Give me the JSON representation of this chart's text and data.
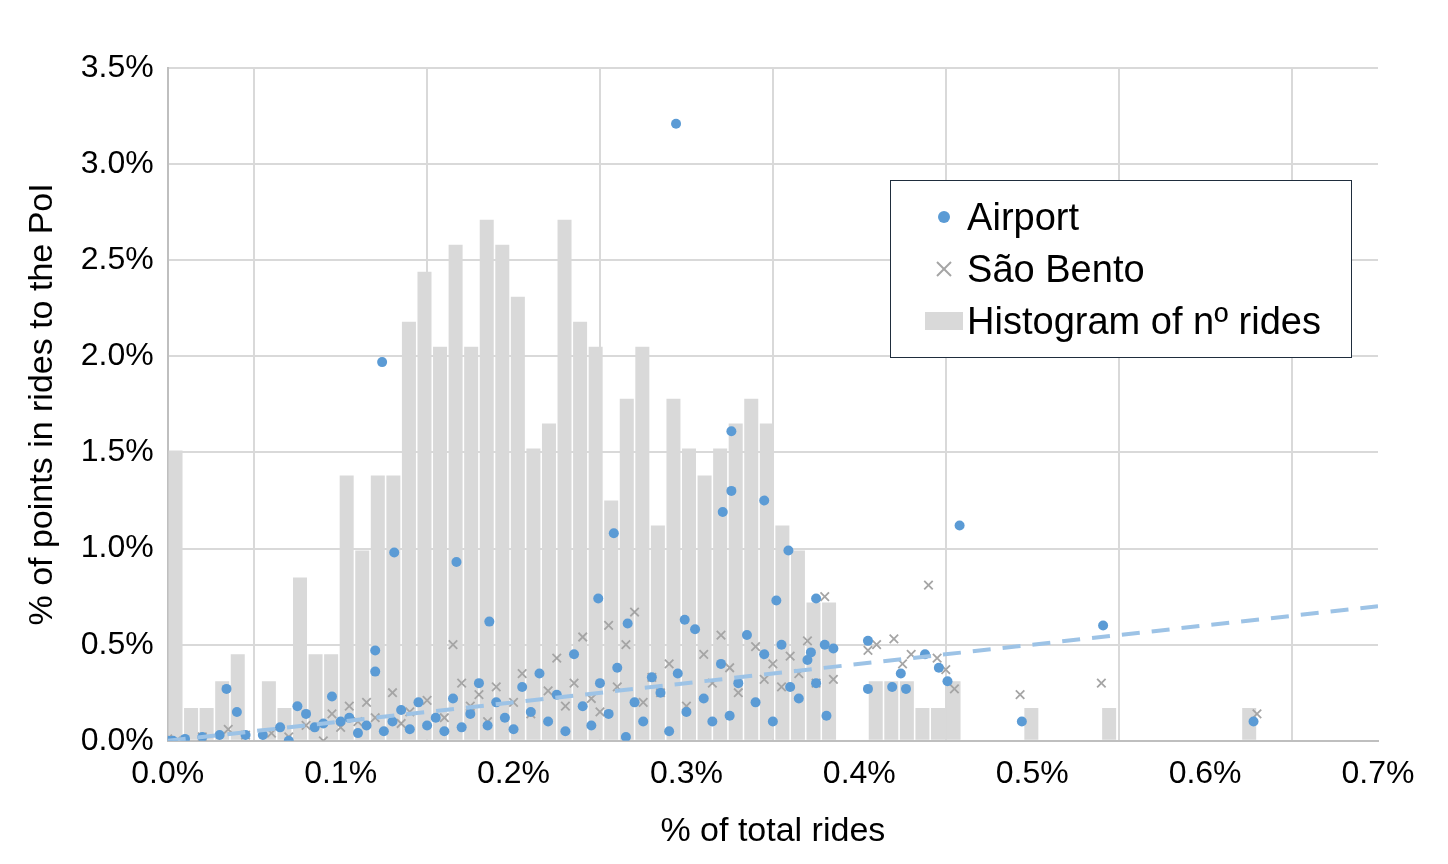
{
  "chart_data": {
    "type": "scatter",
    "xlabel": "% of total rides",
    "ylabel": "% of points in rides to the PoI",
    "xlim": [
      0,
      0.7
    ],
    "ylim": [
      0,
      3.5
    ],
    "xticks": [
      {
        "value": 0,
        "label": "0.0%"
      },
      {
        "value": 0.1,
        "label": "0.1%"
      },
      {
        "value": 0.2,
        "label": "0.2%"
      },
      {
        "value": 0.3,
        "label": "0.3%"
      },
      {
        "value": 0.4,
        "label": "0.4%"
      },
      {
        "value": 0.5,
        "label": "0.5%"
      },
      {
        "value": 0.6,
        "label": "0.6%"
      },
      {
        "value": 0.7,
        "label": "0.7%"
      }
    ],
    "yticks": [
      {
        "value": 0,
        "label": "0.0%"
      },
      {
        "value": 0.5,
        "label": "0.5%"
      },
      {
        "value": 1,
        "label": "1.0%"
      },
      {
        "value": 1.5,
        "label": "1.5%"
      },
      {
        "value": 2,
        "label": "2.0%"
      },
      {
        "value": 2.5,
        "label": "2.5%"
      },
      {
        "value": 3,
        "label": "3.0%"
      },
      {
        "value": 3.5,
        "label": "3.5%"
      }
    ],
    "grid": true,
    "legend": "top right",
    "series": [
      {
        "name": "Airport",
        "type": "scatter",
        "marker": "circle",
        "color": "#5b9bd5",
        "x": [
          0.294,
          0.124,
          0.131,
          0.167,
          0.258,
          0.326,
          0.326,
          0.321,
          0.345,
          0.359,
          0.458,
          0.541,
          0.628,
          0.494,
          0.186,
          0.249,
          0.352,
          0.375,
          0.299,
          0.266,
          0.034,
          0.04,
          0.12,
          0.12,
          0.405,
          0.405,
          0.438,
          0.446,
          0.451,
          0.419,
          0.424,
          0.427,
          0.372,
          0.381,
          0,
          0.003,
          0.01,
          0.02,
          0.03,
          0.045,
          0.055,
          0.065,
          0.075,
          0.08,
          0.07,
          0.085,
          0.09,
          0.095,
          0.1,
          0.105,
          0.11,
          0.115,
          0.125,
          0.13,
          0.135,
          0.14,
          0.145,
          0.15,
          0.155,
          0.16,
          0.165,
          0.17,
          0.175,
          0.18,
          0.185,
          0.19,
          0.195,
          0.2,
          0.205,
          0.21,
          0.215,
          0.22,
          0.225,
          0.23,
          0.235,
          0.24,
          0.245,
          0.25,
          0.255,
          0.26,
          0.265,
          0.27,
          0.275,
          0.28,
          0.285,
          0.29,
          0.295,
          0.3,
          0.305,
          0.31,
          0.315,
          0.32,
          0.325,
          0.33,
          0.335,
          0.34,
          0.345,
          0.35,
          0.355,
          0.36,
          0.365,
          0.37,
          0.375,
          0.38,
          0.385
        ],
        "values": [
          3.21,
          1.97,
          0.98,
          0.93,
          1.08,
          1.61,
          1.3,
          1.19,
          1.25,
          0.99,
          1.12,
          0.6,
          0.1,
          0.1,
          0.62,
          0.74,
          0.73,
          0.74,
          0.63,
          0.61,
          0.27,
          0.15,
          0.47,
          0.36,
          0.52,
          0.27,
          0.45,
          0.38,
          0.31,
          0.28,
          0.35,
          0.27,
          0.46,
          0.13,
          0,
          0,
          0.01,
          0.02,
          0.03,
          0.03,
          0.03,
          0.07,
          0.18,
          0.14,
          0,
          0.07,
          0.09,
          0.23,
          0.1,
          0.12,
          0.04,
          0.08,
          0.05,
          0.1,
          0.16,
          0.06,
          0.2,
          0.08,
          0.12,
          0.05,
          0.22,
          0.07,
          0.14,
          0.3,
          0.08,
          0.2,
          0.12,
          0.06,
          0.28,
          0.15,
          0.35,
          0.1,
          0.24,
          0.05,
          0.45,
          0.18,
          0.08,
          0.3,
          0.14,
          0.38,
          0.02,
          0.2,
          0.1,
          0.33,
          0.25,
          0.05,
          0.35,
          0.15,
          0.58,
          0.22,
          0.1,
          0.4,
          0.13,
          0.3,
          0.55,
          0.2,
          0.45,
          0.1,
          0.5,
          0.28,
          0.22,
          0.42,
          0.3,
          0.5,
          0.48
        ]
      },
      {
        "name": "São Bento",
        "type": "scatter",
        "marker": "cross",
        "color": "#a5a5a5",
        "x": [
          0,
          0.005,
          0.02,
          0.035,
          0.045,
          0.06,
          0.07,
          0.08,
          0.09,
          0.095,
          0.1,
          0.105,
          0.11,
          0.115,
          0.12,
          0.13,
          0.135,
          0.14,
          0.15,
          0.16,
          0.165,
          0.17,
          0.175,
          0.18,
          0.185,
          0.19,
          0.2,
          0.205,
          0.21,
          0.22,
          0.225,
          0.23,
          0.235,
          0.24,
          0.245,
          0.25,
          0.255,
          0.26,
          0.265,
          0.27,
          0.275,
          0.28,
          0.285,
          0.29,
          0.3,
          0.31,
          0.315,
          0.32,
          0.325,
          0.33,
          0.34,
          0.345,
          0.35,
          0.355,
          0.36,
          0.365,
          0.37,
          0.375,
          0.38,
          0.385,
          0.405,
          0.41,
          0.42,
          0.425,
          0.43,
          0.44,
          0.445,
          0.45,
          0.455,
          0.493,
          0.54,
          0.63
        ],
        "values": [
          0.01,
          0,
          0.02,
          0.06,
          0.03,
          0.04,
          0.02,
          0.08,
          0,
          0.14,
          0.07,
          0.18,
          0.1,
          0.2,
          0.12,
          0.25,
          0.09,
          0.15,
          0.21,
          0.12,
          0.5,
          0.3,
          0.18,
          0.24,
          0.1,
          0.28,
          0.2,
          0.35,
          0.14,
          0.26,
          0.43,
          0.18,
          0.3,
          0.54,
          0.22,
          0.15,
          0.6,
          0.28,
          0.5,
          0.67,
          0.2,
          0.33,
          0.25,
          0.4,
          0.18,
          0.45,
          0.3,
          0.55,
          0.38,
          0.25,
          0.49,
          0.32,
          0.4,
          0.28,
          0.44,
          0.35,
          0.52,
          0.3,
          0.75,
          0.32,
          0.47,
          0.5,
          0.53,
          0.4,
          0.45,
          0.81,
          0.43,
          0.37,
          0.27,
          0.24,
          0.3,
          0.14
        ]
      },
      {
        "name": "Histogram of nº rides",
        "type": "histogram",
        "color": "#d9d9d9",
        "bins": [
          0,
          0.009,
          0.018,
          0.027,
          0.036,
          0.045,
          0.054,
          0.063,
          0.072,
          0.081,
          0.09,
          0.099,
          0.108,
          0.117,
          0.126,
          0.135,
          0.144,
          0.153,
          0.162,
          0.171,
          0.18,
          0.189,
          0.198,
          0.207,
          0.216,
          0.225,
          0.234,
          0.243,
          0.252,
          0.261,
          0.27,
          0.279,
          0.288,
          0.297,
          0.306,
          0.315,
          0.324,
          0.333,
          0.342,
          0.351,
          0.36,
          0.369,
          0.378,
          0.387,
          0.396,
          0.405,
          0.414,
          0.423,
          0.432,
          0.441,
          0.45,
          0.459,
          0.468,
          0.477,
          0.486,
          0.495,
          0.504,
          0.513,
          0.522,
          0.531,
          0.54,
          0.549,
          0.558,
          0.567,
          0.576,
          0.585,
          0.594,
          0.603,
          0.612,
          0.621,
          0.63
        ],
        "values": [
          1.51,
          0.17,
          0.17,
          0.31,
          0.45,
          0,
          0.31,
          0.17,
          0.85,
          0.45,
          0.45,
          1.38,
          0.99,
          1.38,
          1.38,
          2.18,
          2.44,
          2.05,
          2.58,
          2.05,
          2.71,
          2.58,
          2.31,
          1.52,
          1.65,
          2.71,
          2.18,
          2.05,
          1.25,
          1.78,
          2.05,
          1.12,
          1.78,
          1.52,
          1.38,
          1.52,
          1.65,
          1.78,
          1.65,
          1.12,
          0.99,
          0.72,
          0.72,
          0,
          0,
          0.31,
          0.31,
          0.31,
          0.17,
          0.17,
          0.31,
          0,
          0,
          0,
          0,
          0.17,
          0,
          0,
          0,
          0,
          0.17,
          0,
          0,
          0,
          0,
          0,
          0,
          0,
          0,
          0.17
        ]
      },
      {
        "type": "line",
        "color": "#9dc3e6",
        "line_style": "dashed",
        "marker": "none",
        "x": [
          0,
          0.7
        ],
        "values": [
          0,
          0.7
        ]
      }
    ]
  }
}
